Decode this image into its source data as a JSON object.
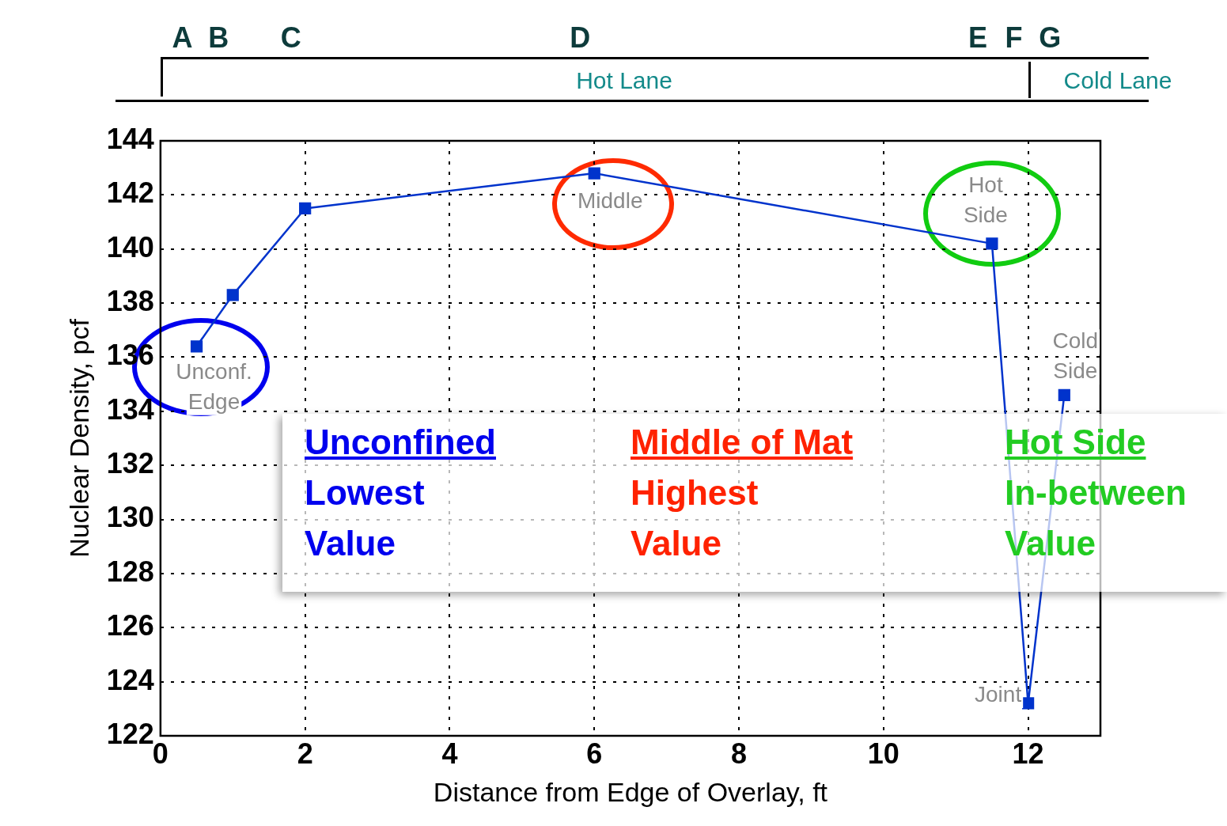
{
  "chart_data": {
    "type": "line",
    "xlabel": "Distance from Edge of Overlay, ft",
    "ylabel": "Nuclear Density, pcf",
    "x": [
      0.5,
      1,
      2,
      6,
      11.5,
      12,
      12.5
    ],
    "series": [
      {
        "color": "#0033cc",
        "values": [
          136.4,
          138.3,
          141.5,
          142.8,
          140.2,
          123.2,
          134.6
        ]
      }
    ],
    "xlim": [
      0,
      13
    ],
    "xticks": [
      0,
      2,
      4,
      6,
      8,
      10,
      12
    ],
    "ylim": [
      122,
      144
    ],
    "yticks": [
      122,
      124,
      126,
      128,
      130,
      132,
      134,
      136,
      138,
      140,
      142,
      144
    ],
    "grid": true,
    "legend": false,
    "marker": "square",
    "line_style": "solid",
    "annotations": [
      "Unconf.\nEdge",
      "Middle",
      "Hot\nSide",
      "Cold\nSide",
      "Joint",
      "A",
      "B",
      "C",
      "D",
      "E",
      "F",
      "G",
      "Hot Lane",
      "Cold Lane",
      "Unconfined\nLowest\nValue",
      "Middle of Mat\nHighest\nValue",
      "Hot Side\nIn-between\nValue"
    ]
  }
}
